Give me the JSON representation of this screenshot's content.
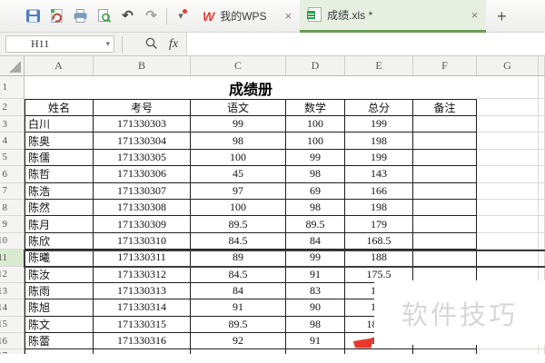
{
  "titlebar": {
    "toolbar_icons": [
      "save-icon",
      "export-pdf-icon",
      "print-icon",
      "print-preview-icon",
      "undo-icon",
      "redo-icon",
      "customize-toolbar-dropdown-icon"
    ],
    "undo_glyph": "↶",
    "redo_glyph": "↷",
    "dropdown_glyph": "▾",
    "wps_logo_letter": "W"
  },
  "tabs": {
    "home": "我的WPS",
    "document": "成绩.xls *",
    "close": "×",
    "new_tab": "+"
  },
  "formula": {
    "name_box": "H11",
    "name_dropdown_glyph": "▾",
    "fx_label": "fx",
    "input_value": ""
  },
  "grid": {
    "columns": [
      "A",
      "B",
      "C",
      "D",
      "E",
      "F",
      "G"
    ],
    "row_numbers": [
      "1",
      "2",
      "3",
      "4",
      "5",
      "6",
      "7",
      "8",
      "9",
      "10",
      "11",
      "12",
      "13",
      "14",
      "15",
      "16",
      "17"
    ],
    "selected_row": 11
  },
  "sheet": {
    "title": "成绩册",
    "headers": [
      "姓名",
      "考号",
      "语文",
      "数学",
      "总分",
      "备注"
    ],
    "students": [
      {
        "name": "白川",
        "id": "171330303",
        "chinese": "99",
        "math": "100",
        "total": "199"
      },
      {
        "name": "陈奥",
        "id": "171330304",
        "chinese": "98",
        "math": "100",
        "total": "198"
      },
      {
        "name": "陈儒",
        "id": "171330305",
        "chinese": "100",
        "math": "99",
        "total": "199"
      },
      {
        "name": "陈哲",
        "id": "171330306",
        "chinese": "45",
        "math": "98",
        "total": "143"
      },
      {
        "name": "陈浩",
        "id": "171330307",
        "chinese": "97",
        "math": "69",
        "total": "166"
      },
      {
        "name": "陈然",
        "id": "171330308",
        "chinese": "100",
        "math": "98",
        "total": "198"
      },
      {
        "name": "陈月",
        "id": "171330309",
        "chinese": "89.5",
        "math": "89.5",
        "total": "179"
      },
      {
        "name": "陈欣",
        "id": "171330310",
        "chinese": "84.5",
        "math": "84",
        "total": "168.5"
      },
      {
        "name": "陈曦",
        "id": "171330311",
        "chinese": "89",
        "math": "99",
        "total": "188"
      },
      {
        "name": "陈汝",
        "id": "171330312",
        "chinese": "84.5",
        "math": "91",
        "total": "175.5"
      },
      {
        "name": "陈雨",
        "id": "171330313",
        "chinese": "84",
        "math": "83",
        "total": "167"
      },
      {
        "name": "陈旭",
        "id": "171330314",
        "chinese": "91",
        "math": "90",
        "total": "181"
      },
      {
        "name": "陈文",
        "id": "171330315",
        "chinese": "89.5",
        "math": "98",
        "total": "187.5"
      },
      {
        "name": "陈蕾",
        "id": "171330316",
        "chinese": "92",
        "math": "91",
        "total": "183"
      }
    ]
  },
  "watermark": "软件技巧",
  "colors": {
    "tab_accent_green": "#6b9e54",
    "active_tab_bg": "#e7efe0",
    "selected_row_header_bg": "#d9ead0",
    "error_triangle_green": "#2d7d32",
    "flag_red": "#e8382d",
    "wps_logo_red": "#e23c39",
    "sheet_icon_green": "#2e9e4f"
  }
}
